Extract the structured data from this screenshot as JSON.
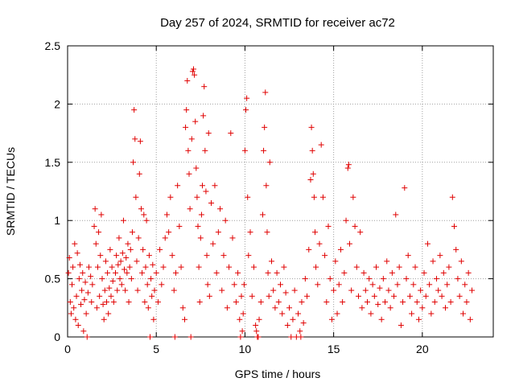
{
  "chart_data": {
    "type": "scatter",
    "title": "Day 257 of 2024, SRMTID for receiver ac72",
    "xlabel": "GPS time / hours",
    "ylabel": "SRMTID / TECUs",
    "xlim": [
      0,
      24
    ],
    "ylim": [
      0,
      2.5
    ],
    "x_ticks": [
      {
        "value": 0,
        "label": "0"
      },
      {
        "value": 5,
        "label": "5"
      },
      {
        "value": 10,
        "label": "10"
      },
      {
        "value": 15,
        "label": "15"
      },
      {
        "value": 20,
        "label": "20"
      }
    ],
    "y_ticks": [
      {
        "value": 0,
        "label": "0"
      },
      {
        "value": 0.5,
        "label": "0.5"
      },
      {
        "value": 1,
        "label": "1"
      },
      {
        "value": 1.5,
        "label": "1.5"
      },
      {
        "value": 2,
        "label": "2"
      },
      {
        "value": 2.5,
        "label": "2.5"
      }
    ],
    "grid": true,
    "marker": "+",
    "color": "#e00000",
    "series": [
      {
        "name": "SRMTID",
        "points": [
          [
            0.05,
            0.55
          ],
          [
            0.1,
            0.68
          ],
          [
            0.15,
            0.3
          ],
          [
            0.2,
            0.2
          ],
          [
            0.25,
            0.45
          ],
          [
            0.3,
            0.6
          ],
          [
            0.35,
            0.25
          ],
          [
            0.4,
            0.8
          ],
          [
            0.45,
            0.15
          ],
          [
            0.5,
            0.35
          ],
          [
            0.55,
            0.72
          ],
          [
            0.6,
            0.1
          ],
          [
            0.65,
            0.5
          ],
          [
            0.7,
            0.62
          ],
          [
            0.75,
            0.28
          ],
          [
            0.8,
            0.4
          ],
          [
            0.85,
            0.55
          ],
          [
            0.9,
            0.05
          ],
          [
            0.95,
            0.32
          ],
          [
            1.0,
            0.47
          ],
          [
            1.05,
            0.2
          ],
          [
            1.1,
            0.0
          ],
          [
            1.15,
            0.38
          ],
          [
            1.2,
            0.6
          ],
          [
            1.3,
            0.52
          ],
          [
            1.35,
            0.3
          ],
          [
            1.4,
            0.45
          ],
          [
            1.5,
            0.95
          ],
          [
            1.55,
            1.1
          ],
          [
            1.6,
            0.8
          ],
          [
            1.65,
            0.25
          ],
          [
            1.7,
            0.6
          ],
          [
            1.75,
            0.9
          ],
          [
            1.8,
            0.35
          ],
          [
            1.85,
            0.7
          ],
          [
            1.9,
            1.05
          ],
          [
            1.95,
            0.5
          ],
          [
            2.0,
            0.28
          ],
          [
            2.05,
            0.15
          ],
          [
            2.1,
            0.4
          ],
          [
            2.15,
            0.65
          ],
          [
            2.2,
            0.3
          ],
          [
            2.25,
            0.55
          ],
          [
            2.3,
            0.2
          ],
          [
            2.35,
            0.42
          ],
          [
            2.4,
            0.75
          ],
          [
            2.45,
            0.35
          ],
          [
            2.5,
            0.6
          ],
          [
            2.55,
            0.48
          ],
          [
            2.6,
            0.3
          ],
          [
            2.7,
            0.55
          ],
          [
            2.75,
            0.7
          ],
          [
            2.8,
            0.4
          ],
          [
            2.85,
            0.62
          ],
          [
            2.9,
            0.85
          ],
          [
            2.95,
            0.5
          ],
          [
            3.0,
            0.65
          ],
          [
            3.05,
            0.45
          ],
          [
            3.1,
            0.72
          ],
          [
            3.15,
            1.0
          ],
          [
            3.2,
            0.58
          ],
          [
            3.25,
            0.4
          ],
          [
            3.3,
            0.68
          ],
          [
            3.35,
            0.55
          ],
          [
            3.4,
            0.8
          ],
          [
            3.45,
            0.3
          ],
          [
            3.5,
            0.6
          ],
          [
            3.55,
            0.75
          ],
          [
            3.6,
            0.5
          ],
          [
            3.65,
            0.9
          ],
          [
            3.7,
            1.5
          ],
          [
            3.75,
            1.95
          ],
          [
            3.8,
            1.7
          ],
          [
            3.85,
            1.2
          ],
          [
            3.9,
            0.65
          ],
          [
            3.95,
            0.4
          ],
          [
            4.0,
            0.85
          ],
          [
            4.05,
            1.4
          ],
          [
            4.1,
            1.68
          ],
          [
            4.15,
            1.1
          ],
          [
            4.2,
            0.55
          ],
          [
            4.25,
            0.75
          ],
          [
            4.3,
            1.05
          ],
          [
            4.35,
            0.3
          ],
          [
            4.4,
            0.6
          ],
          [
            4.45,
            1.0
          ],
          [
            4.5,
            0.45
          ],
          [
            4.55,
            0.25
          ],
          [
            4.6,
            0.7
          ],
          [
            4.65,
            0.0
          ],
          [
            4.7,
            0.5
          ],
          [
            4.75,
            0.35
          ],
          [
            4.8,
            0.62
          ],
          [
            4.85,
            0.15
          ],
          [
            4.9,
            0.4
          ],
          [
            5.0,
            0.55
          ],
          [
            5.1,
            0.3
          ],
          [
            5.2,
            0.75
          ],
          [
            5.3,
            0.45
          ],
          [
            5.4,
            0.6
          ],
          [
            5.5,
            0.85
          ],
          [
            5.6,
            1.05
          ],
          [
            5.7,
            0.9
          ],
          [
            5.8,
            1.2
          ],
          [
            5.9,
            0.7
          ],
          [
            6.0,
            0.4
          ],
          [
            6.05,
            0.0
          ],
          [
            6.1,
            0.55
          ],
          [
            6.2,
            1.3
          ],
          [
            6.3,
            0.95
          ],
          [
            6.4,
            0.6
          ],
          [
            6.5,
            0.25
          ],
          [
            6.6,
            0.15
          ],
          [
            6.65,
            1.8
          ],
          [
            6.7,
            1.95
          ],
          [
            6.75,
            2.2
          ],
          [
            6.8,
            1.6
          ],
          [
            6.85,
            1.4
          ],
          [
            6.9,
            1.1
          ],
          [
            6.95,
            0.0
          ],
          [
            7.0,
            1.7
          ],
          [
            7.05,
            2.28
          ],
          [
            7.1,
            2.3
          ],
          [
            7.15,
            2.25
          ],
          [
            7.2,
            1.85
          ],
          [
            7.25,
            1.45
          ],
          [
            7.3,
            1.2
          ],
          [
            7.35,
            0.95
          ],
          [
            7.4,
            0.6
          ],
          [
            7.45,
            0.3
          ],
          [
            7.5,
            0.85
          ],
          [
            7.55,
            1.05
          ],
          [
            7.6,
            1.3
          ],
          [
            7.65,
            1.9
          ],
          [
            7.7,
            2.15
          ],
          [
            7.75,
            1.6
          ],
          [
            7.8,
            1.25
          ],
          [
            7.85,
            0.7
          ],
          [
            7.9,
            0.45
          ],
          [
            7.95,
            1.75
          ],
          [
            8.0,
            0.35
          ],
          [
            8.1,
            1.15
          ],
          [
            8.2,
            0.8
          ],
          [
            8.3,
            1.3
          ],
          [
            8.4,
            0.55
          ],
          [
            8.5,
            0.9
          ],
          [
            8.6,
            1.1
          ],
          [
            8.7,
            0.4
          ],
          [
            8.8,
            0.7
          ],
          [
            8.9,
            1.0
          ],
          [
            9.0,
            0.25
          ],
          [
            9.1,
            0.6
          ],
          [
            9.2,
            1.75
          ],
          [
            9.3,
            0.85
          ],
          [
            9.4,
            0.45
          ],
          [
            9.5,
            0.3
          ],
          [
            9.6,
            0.55
          ],
          [
            9.7,
            0.15
          ],
          [
            9.75,
            0.0
          ],
          [
            9.8,
            0.35
          ],
          [
            9.85,
            0.05
          ],
          [
            9.9,
            0.2
          ],
          [
            9.95,
            0.45
          ],
          [
            10.0,
            1.6
          ],
          [
            10.05,
            1.95
          ],
          [
            10.1,
            2.05
          ],
          [
            10.15,
            1.2
          ],
          [
            10.2,
            0.7
          ],
          [
            10.3,
            0.9
          ],
          [
            10.4,
            0.35
          ],
          [
            10.5,
            0.6
          ],
          [
            10.6,
            0.1
          ],
          [
            10.65,
            0.05
          ],
          [
            10.7,
            0.0
          ],
          [
            10.75,
            0.0
          ],
          [
            10.8,
            0.15
          ],
          [
            10.9,
            0.3
          ],
          [
            11.0,
            1.05
          ],
          [
            11.05,
            1.6
          ],
          [
            11.1,
            1.8
          ],
          [
            11.15,
            2.1
          ],
          [
            11.2,
            1.3
          ],
          [
            11.25,
            0.9
          ],
          [
            11.3,
            0.55
          ],
          [
            11.35,
            0.35
          ],
          [
            11.4,
            1.5
          ],
          [
            11.5,
            0.65
          ],
          [
            11.6,
            0.4
          ],
          [
            11.7,
            0.25
          ],
          [
            11.8,
            0.55
          ],
          [
            11.9,
            0.3
          ],
          [
            12.0,
            0.45
          ],
          [
            12.1,
            0.2
          ],
          [
            12.2,
            0.6
          ],
          [
            12.3,
            0.38
          ],
          [
            12.4,
            0.1
          ],
          [
            12.5,
            0.25
          ],
          [
            12.6,
            0.0
          ],
          [
            12.7,
            0.15
          ],
          [
            12.8,
            0.4
          ],
          [
            12.9,
            0.0
          ],
          [
            13.0,
            0.2
          ],
          [
            13.1,
            0.05
          ],
          [
            13.15,
            0.0
          ],
          [
            13.2,
            0.3
          ],
          [
            13.3,
            0.12
          ],
          [
            13.4,
            0.5
          ],
          [
            13.5,
            0.35
          ],
          [
            13.6,
            0.75
          ],
          [
            13.7,
            1.35
          ],
          [
            13.75,
            1.8
          ],
          [
            13.8,
            1.6
          ],
          [
            13.85,
            1.4
          ],
          [
            13.9,
            1.2
          ],
          [
            13.95,
            0.9
          ],
          [
            14.0,
            0.6
          ],
          [
            14.1,
            0.45
          ],
          [
            14.2,
            0.8
          ],
          [
            14.3,
            1.65
          ],
          [
            14.4,
            1.2
          ],
          [
            14.5,
            0.7
          ],
          [
            14.6,
            0.3
          ],
          [
            14.7,
            0.95
          ],
          [
            14.8,
            0.5
          ],
          [
            14.9,
            0.15
          ],
          [
            15.0,
            0.4
          ],
          [
            15.1,
            0.65
          ],
          [
            15.2,
            0.2
          ],
          [
            15.3,
            0.45
          ],
          [
            15.4,
            0.75
          ],
          [
            15.5,
            0.3
          ],
          [
            15.6,
            0.55
          ],
          [
            15.7,
            1.0
          ],
          [
            15.8,
            1.45
          ],
          [
            15.85,
            1.48
          ],
          [
            15.9,
            0.8
          ],
          [
            16.0,
            0.4
          ],
          [
            16.1,
            1.2
          ],
          [
            16.2,
            0.95
          ],
          [
            16.3,
            0.6
          ],
          [
            16.4,
            0.35
          ],
          [
            16.5,
            0.9
          ],
          [
            16.6,
            0.25
          ],
          [
            16.7,
            0.55
          ],
          [
            16.8,
            0.4
          ],
          [
            16.9,
            0.3
          ],
          [
            17.0,
            0.5
          ],
          [
            17.1,
            0.2
          ],
          [
            17.2,
            0.45
          ],
          [
            17.3,
            0.35
          ],
          [
            17.4,
            0.6
          ],
          [
            17.5,
            0.28
          ],
          [
            17.6,
            0.42
          ],
          [
            17.7,
            0.15
          ],
          [
            17.8,
            0.5
          ],
          [
            17.9,
            0.3
          ],
          [
            18.0,
            0.65
          ],
          [
            18.1,
            0.4
          ],
          [
            18.2,
            0.25
          ],
          [
            18.3,
            0.55
          ],
          [
            18.4,
            0.35
          ],
          [
            18.5,
            1.05
          ],
          [
            18.6,
            0.45
          ],
          [
            18.7,
            0.6
          ],
          [
            18.8,
            0.1
          ],
          [
            18.9,
            0.3
          ],
          [
            19.0,
            1.28
          ],
          [
            19.1,
            0.5
          ],
          [
            19.2,
            0.7
          ],
          [
            19.3,
            0.35
          ],
          [
            19.4,
            0.2
          ],
          [
            19.5,
            0.45
          ],
          [
            19.6,
            0.6
          ],
          [
            19.7,
            0.3
          ],
          [
            19.8,
            0.15
          ],
          [
            19.9,
            0.4
          ],
          [
            20.0,
            0.25
          ],
          [
            20.1,
            0.55
          ],
          [
            20.2,
            0.35
          ],
          [
            20.3,
            0.8
          ],
          [
            20.4,
            0.45
          ],
          [
            20.5,
            0.2
          ],
          [
            20.6,
            0.65
          ],
          [
            20.7,
            0.3
          ],
          [
            20.8,
            0.5
          ],
          [
            20.9,
            0.4
          ],
          [
            21.0,
            0.7
          ],
          [
            21.1,
            0.35
          ],
          [
            21.2,
            0.55
          ],
          [
            21.3,
            0.25
          ],
          [
            21.4,
            0.45
          ],
          [
            21.5,
            0.6
          ],
          [
            21.6,
            0.3
          ],
          [
            21.7,
            1.2
          ],
          [
            21.8,
            0.95
          ],
          [
            21.9,
            0.75
          ],
          [
            22.0,
            0.5
          ],
          [
            22.1,
            0.35
          ],
          [
            22.2,
            0.65
          ],
          [
            22.3,
            0.2
          ],
          [
            22.4,
            0.45
          ],
          [
            22.5,
            0.3
          ],
          [
            22.6,
            0.55
          ],
          [
            22.7,
            0.15
          ],
          [
            22.8,
            0.4
          ]
        ]
      }
    ]
  }
}
